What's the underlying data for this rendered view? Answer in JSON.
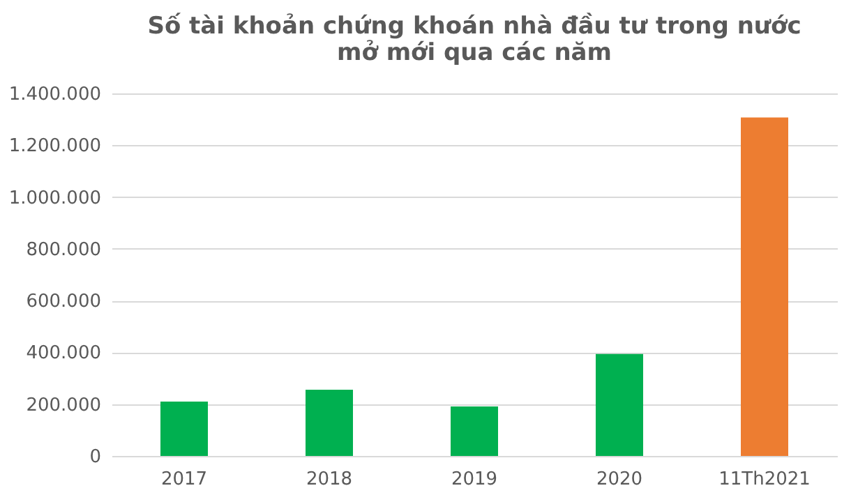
{
  "chart_data": {
    "type": "bar",
    "title": [
      "Số tài khoản chứng khoán nhà đầu tư trong nước",
      "mở mới qua các năm"
    ],
    "categories": [
      "2017",
      "2018",
      "2019",
      "2020",
      "11Th2021"
    ],
    "values": [
      210000,
      256000,
      191000,
      394000,
      1307000
    ],
    "colors": [
      "#00b050",
      "#00b050",
      "#00b050",
      "#00b050",
      "#ed7d31"
    ],
    "ylim": [
      0,
      1400000
    ],
    "yticks": [
      {
        "value": 0,
        "label": "0"
      },
      {
        "value": 200000,
        "label": "200.000"
      },
      {
        "value": 400000,
        "label": "400.000"
      },
      {
        "value": 600000,
        "label": "600.000"
      },
      {
        "value": 800000,
        "label": "800.000"
      },
      {
        "value": 1000000,
        "label": "1.000.000"
      },
      {
        "value": 1200000,
        "label": "1.200.000"
      },
      {
        "value": 1400000,
        "label": "1.400.000"
      }
    ],
    "grid": "y"
  }
}
